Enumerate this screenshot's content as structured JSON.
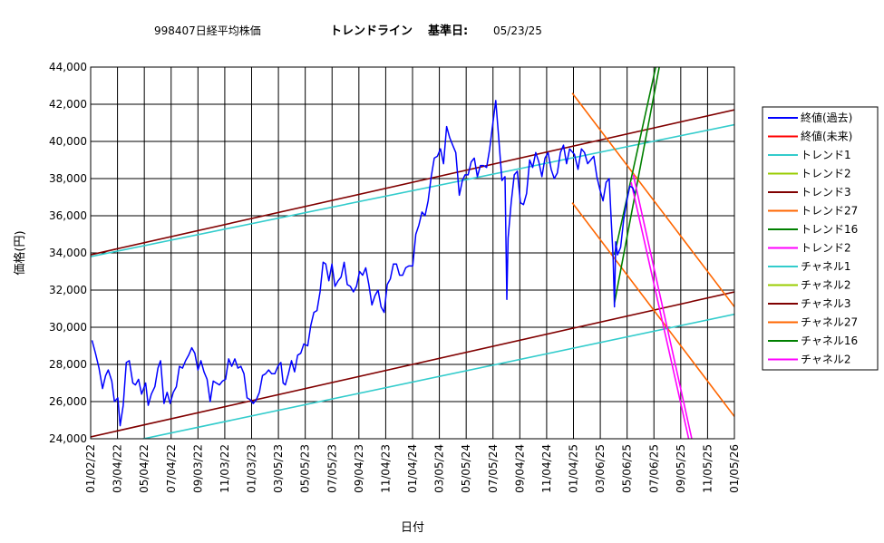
{
  "chart_data": {
    "type": "line",
    "title_code": "998407日経平均株価",
    "title_main": "トレンドライン",
    "title_date_label": "基準日:",
    "title_date": "05/23/25",
    "xlabel": "日付",
    "ylabel": "価格(円)",
    "ylim": [
      24000,
      44000
    ],
    "xlim": [
      "2022-01-01",
      "2026-01-05"
    ],
    "y_ticks": [
      "24,000",
      "26,000",
      "28,000",
      "30,000",
      "32,000",
      "34,000",
      "36,000",
      "38,000",
      "40,000",
      "42,000",
      "44,000"
    ],
    "x_ticks": [
      "01/02/22",
      "03/04/22",
      "05/04/22",
      "07/04/22",
      "09/03/22",
      "11/03/22",
      "01/03/23",
      "03/05/23",
      "05/05/23",
      "07/05/23",
      "09/04/23",
      "11/04/23",
      "01/04/24",
      "03/05/24",
      "05/05/24",
      "07/05/24",
      "09/04/24",
      "11/04/24",
      "01/04/25",
      "03/06/25",
      "05/06/25",
      "07/06/25",
      "09/05/25",
      "11/05/25",
      "01/05/26"
    ],
    "grid": true,
    "legend_position": "right",
    "legend": [
      {
        "label": "終値(過去)",
        "color": "#0000FF"
      },
      {
        "label": "終値(未来)",
        "color": "#FF0000"
      },
      {
        "label": "トレンド1",
        "color": "#33CCCC"
      },
      {
        "label": "トレンド2",
        "color": "#99CC00"
      },
      {
        "label": "トレンド3",
        "color": "#800000"
      },
      {
        "label": "トレンド27",
        "color": "#FF6600"
      },
      {
        "label": "トレンド16",
        "color": "#008000"
      },
      {
        "label": "トレンド2",
        "color": "#FF00FF"
      },
      {
        "label": "チャネル1",
        "color": "#33CCCC"
      },
      {
        "label": "チャネル2",
        "color": "#99CC00"
      },
      {
        "label": "チャネル3",
        "color": "#800000"
      },
      {
        "label": "チャネル27",
        "color": "#FF6600"
      },
      {
        "label": "チャネル16",
        "color": "#008000"
      },
      {
        "label": "チャネル2",
        "color": "#FF00FF"
      }
    ],
    "close_past": {
      "name": "終値(過去)",
      "color": "#0000FF",
      "points": [
        [
          "2022-01-04",
          29300
        ],
        [
          "2022-01-12",
          28600
        ],
        [
          "2022-01-20",
          27800
        ],
        [
          "2022-01-28",
          26700
        ],
        [
          "2022-02-04",
          27400
        ],
        [
          "2022-02-10",
          27700
        ],
        [
          "2022-02-18",
          27100
        ],
        [
          "2022-02-24",
          26000
        ],
        [
          "2022-03-04",
          26200
        ],
        [
          "2022-03-09",
          24700
        ],
        [
          "2022-03-16",
          25800
        ],
        [
          "2022-03-23",
          28100
        ],
        [
          "2022-03-30",
          28200
        ],
        [
          "2022-04-07",
          27000
        ],
        [
          "2022-04-13",
          26900
        ],
        [
          "2022-04-20",
          27200
        ],
        [
          "2022-04-27",
          26400
        ],
        [
          "2022-05-06",
          27000
        ],
        [
          "2022-05-12",
          25800
        ],
        [
          "2022-05-19",
          26400
        ],
        [
          "2022-05-27",
          26800
        ],
        [
          "2022-06-03",
          27800
        ],
        [
          "2022-06-09",
          28200
        ],
        [
          "2022-06-17",
          25900
        ],
        [
          "2022-06-24",
          26500
        ],
        [
          "2022-07-01",
          25900
        ],
        [
          "2022-07-08",
          26500
        ],
        [
          "2022-07-15",
          26800
        ],
        [
          "2022-07-22",
          27900
        ],
        [
          "2022-07-29",
          27800
        ],
        [
          "2022-08-05",
          28200
        ],
        [
          "2022-08-12",
          28500
        ],
        [
          "2022-08-19",
          28900
        ],
        [
          "2022-08-26",
          28600
        ],
        [
          "2022-09-02",
          27700
        ],
        [
          "2022-09-09",
          28200
        ],
        [
          "2022-09-16",
          27600
        ],
        [
          "2022-09-23",
          27200
        ],
        [
          "2022-09-30",
          26000
        ],
        [
          "2022-10-07",
          27100
        ],
        [
          "2022-10-14",
          27000
        ],
        [
          "2022-10-21",
          26900
        ],
        [
          "2022-10-28",
          27100
        ],
        [
          "2022-11-04",
          27200
        ],
        [
          "2022-11-11",
          28300
        ],
        [
          "2022-11-18",
          27900
        ],
        [
          "2022-11-25",
          28300
        ],
        [
          "2022-12-02",
          27800
        ],
        [
          "2022-12-09",
          27900
        ],
        [
          "2022-12-16",
          27500
        ],
        [
          "2022-12-23",
          26200
        ],
        [
          "2022-12-30",
          26100
        ],
        [
          "2023-01-06",
          25900
        ],
        [
          "2023-01-13",
          26100
        ],
        [
          "2023-01-20",
          26500
        ],
        [
          "2023-01-27",
          27400
        ],
        [
          "2023-02-03",
          27500
        ],
        [
          "2023-02-10",
          27700
        ],
        [
          "2023-02-17",
          27500
        ],
        [
          "2023-02-24",
          27500
        ],
        [
          "2023-03-03",
          27900
        ],
        [
          "2023-03-10",
          28100
        ],
        [
          "2023-03-15",
          27000
        ],
        [
          "2023-03-20",
          26900
        ],
        [
          "2023-03-27",
          27500
        ],
        [
          "2023-04-03",
          28200
        ],
        [
          "2023-04-10",
          27600
        ],
        [
          "2023-04-17",
          28500
        ],
        [
          "2023-04-24",
          28600
        ],
        [
          "2023-05-01",
          29100
        ],
        [
          "2023-05-10",
          29000
        ],
        [
          "2023-05-17",
          30100
        ],
        [
          "2023-05-24",
          30800
        ],
        [
          "2023-05-31",
          30900
        ],
        [
          "2023-06-07",
          31900
        ],
        [
          "2023-06-14",
          33500
        ],
        [
          "2023-06-20",
          33400
        ],
        [
          "2023-06-27",
          32500
        ],
        [
          "2023-07-04",
          33400
        ],
        [
          "2023-07-11",
          32200
        ],
        [
          "2023-07-18",
          32500
        ],
        [
          "2023-07-25",
          32700
        ],
        [
          "2023-08-01",
          33500
        ],
        [
          "2023-08-08",
          32300
        ],
        [
          "2023-08-15",
          32200
        ],
        [
          "2023-08-22",
          31900
        ],
        [
          "2023-08-29",
          32200
        ],
        [
          "2023-09-05",
          33000
        ],
        [
          "2023-09-12",
          32800
        ],
        [
          "2023-09-19",
          33200
        ],
        [
          "2023-09-26",
          32300
        ],
        [
          "2023-10-03",
          31200
        ],
        [
          "2023-10-10",
          31700
        ],
        [
          "2023-10-17",
          32000
        ],
        [
          "2023-10-24",
          31100
        ],
        [
          "2023-10-31",
          30800
        ],
        [
          "2023-11-07",
          32300
        ],
        [
          "2023-11-14",
          32600
        ],
        [
          "2023-11-21",
          33400
        ],
        [
          "2023-11-28",
          33400
        ],
        [
          "2023-12-05",
          32800
        ],
        [
          "2023-12-12",
          32800
        ],
        [
          "2023-12-19",
          33200
        ],
        [
          "2023-12-26",
          33300
        ],
        [
          "2024-01-04",
          33300
        ],
        [
          "2024-01-11",
          35000
        ],
        [
          "2024-01-18",
          35500
        ],
        [
          "2024-01-25",
          36200
        ],
        [
          "2024-02-01",
          36000
        ],
        [
          "2024-02-08",
          36800
        ],
        [
          "2024-02-15",
          38100
        ],
        [
          "2024-02-22",
          39100
        ],
        [
          "2024-02-29",
          39200
        ],
        [
          "2024-03-07",
          39600
        ],
        [
          "2024-03-14",
          38800
        ],
        [
          "2024-03-21",
          40800
        ],
        [
          "2024-03-28",
          40200
        ],
        [
          "2024-04-04",
          39800
        ],
        [
          "2024-04-11",
          39400
        ],
        [
          "2024-04-19",
          37100
        ],
        [
          "2024-04-26",
          37900
        ],
        [
          "2024-05-02",
          38200
        ],
        [
          "2024-05-09",
          38200
        ],
        [
          "2024-05-16",
          38900
        ],
        [
          "2024-05-23",
          39100
        ],
        [
          "2024-05-30",
          38100
        ],
        [
          "2024-06-06",
          38700
        ],
        [
          "2024-06-13",
          38700
        ],
        [
          "2024-06-20",
          38600
        ],
        [
          "2024-06-27",
          39600
        ],
        [
          "2024-07-04",
          40900
        ],
        [
          "2024-07-11",
          42200
        ],
        [
          "2024-07-18",
          40100
        ],
        [
          "2024-07-25",
          37900
        ],
        [
          "2024-08-01",
          38100
        ],
        [
          "2024-08-05",
          31500
        ],
        [
          "2024-08-08",
          34800
        ],
        [
          "2024-08-15",
          36700
        ],
        [
          "2024-08-22",
          38200
        ],
        [
          "2024-08-29",
          38400
        ],
        [
          "2024-09-05",
          36700
        ],
        [
          "2024-09-12",
          36600
        ],
        [
          "2024-09-19",
          37200
        ],
        [
          "2024-09-26",
          39000
        ],
        [
          "2024-10-03",
          38600
        ],
        [
          "2024-10-10",
          39400
        ],
        [
          "2024-10-17",
          38900
        ],
        [
          "2024-10-24",
          38100
        ],
        [
          "2024-10-31",
          39100
        ],
        [
          "2024-11-07",
          39400
        ],
        [
          "2024-11-14",
          38500
        ],
        [
          "2024-11-21",
          38000
        ],
        [
          "2024-11-28",
          38300
        ],
        [
          "2024-12-05",
          39400
        ],
        [
          "2024-12-12",
          39800
        ],
        [
          "2024-12-19",
          38800
        ],
        [
          "2024-12-26",
          39600
        ],
        [
          "2025-01-06",
          39300
        ],
        [
          "2025-01-14",
          38500
        ],
        [
          "2025-01-22",
          39600
        ],
        [
          "2025-01-29",
          39400
        ],
        [
          "2025-02-05",
          38800
        ],
        [
          "2025-02-12",
          39000
        ],
        [
          "2025-02-19",
          39200
        ],
        [
          "2025-02-26",
          38100
        ],
        [
          "2025-03-05",
          37400
        ],
        [
          "2025-03-12",
          36800
        ],
        [
          "2025-03-19",
          37800
        ],
        [
          "2025-03-26",
          38000
        ],
        [
          "2025-03-31",
          35600
        ],
        [
          "2025-04-04",
          33800
        ],
        [
          "2025-04-07",
          31100
        ],
        [
          "2025-04-10",
          34600
        ],
        [
          "2025-04-14",
          33900
        ],
        [
          "2025-04-21",
          34300
        ],
        [
          "2025-04-28",
          35800
        ],
        [
          "2025-05-05",
          36800
        ],
        [
          "2025-05-12",
          37600
        ],
        [
          "2025-05-19",
          37500
        ],
        [
          "2025-05-23",
          37200
        ]
      ]
    },
    "lines": [
      {
        "name": "トレンド1",
        "color": "#33CCCC",
        "from": [
          "2022-01-01",
          33800
        ],
        "to": [
          "2026-01-05",
          40900
        ]
      },
      {
        "name": "チャネル1",
        "color": "#33CCCC",
        "from": [
          "2022-01-01",
          23400
        ],
        "to": [
          "2026-01-05",
          30700
        ]
      },
      {
        "name": "トレンド3",
        "color": "#800000",
        "from": [
          "2022-01-01",
          33900
        ],
        "to": [
          "2026-01-05",
          41700
        ]
      },
      {
        "name": "チャネル3",
        "color": "#800000",
        "from": [
          "2022-01-01",
          24100
        ],
        "to": [
          "2026-01-05",
          31900
        ]
      },
      {
        "name": "トレンド27",
        "color": "#FF6600",
        "from": [
          "2025-01-01",
          42600
        ],
        "to": [
          "2026-01-05",
          31100
        ]
      },
      {
        "name": "チャネル27",
        "color": "#FF6600",
        "from": [
          "2025-01-01",
          36700
        ],
        "to": [
          "2026-01-05",
          25200
        ]
      },
      {
        "name": "トレンド16",
        "color": "#008000",
        "from": [
          "2025-04-07",
          33900
        ],
        "to": [
          "2025-07-10",
          44000
        ]
      },
      {
        "name": "チャネル16",
        "color": "#008000",
        "from": [
          "2025-04-07",
          31300
        ],
        "to": [
          "2025-07-18",
          44000
        ]
      },
      {
        "name": "トレンド2",
        "color": "#FF00FF",
        "from": [
          "2025-05-15",
          37800
        ],
        "to": [
          "2025-09-23",
          24000
        ]
      },
      {
        "name": "チャネル2",
        "color": "#FF00FF",
        "from": [
          "2025-05-20",
          38200
        ],
        "to": [
          "2025-09-30",
          24000
        ]
      }
    ]
  }
}
